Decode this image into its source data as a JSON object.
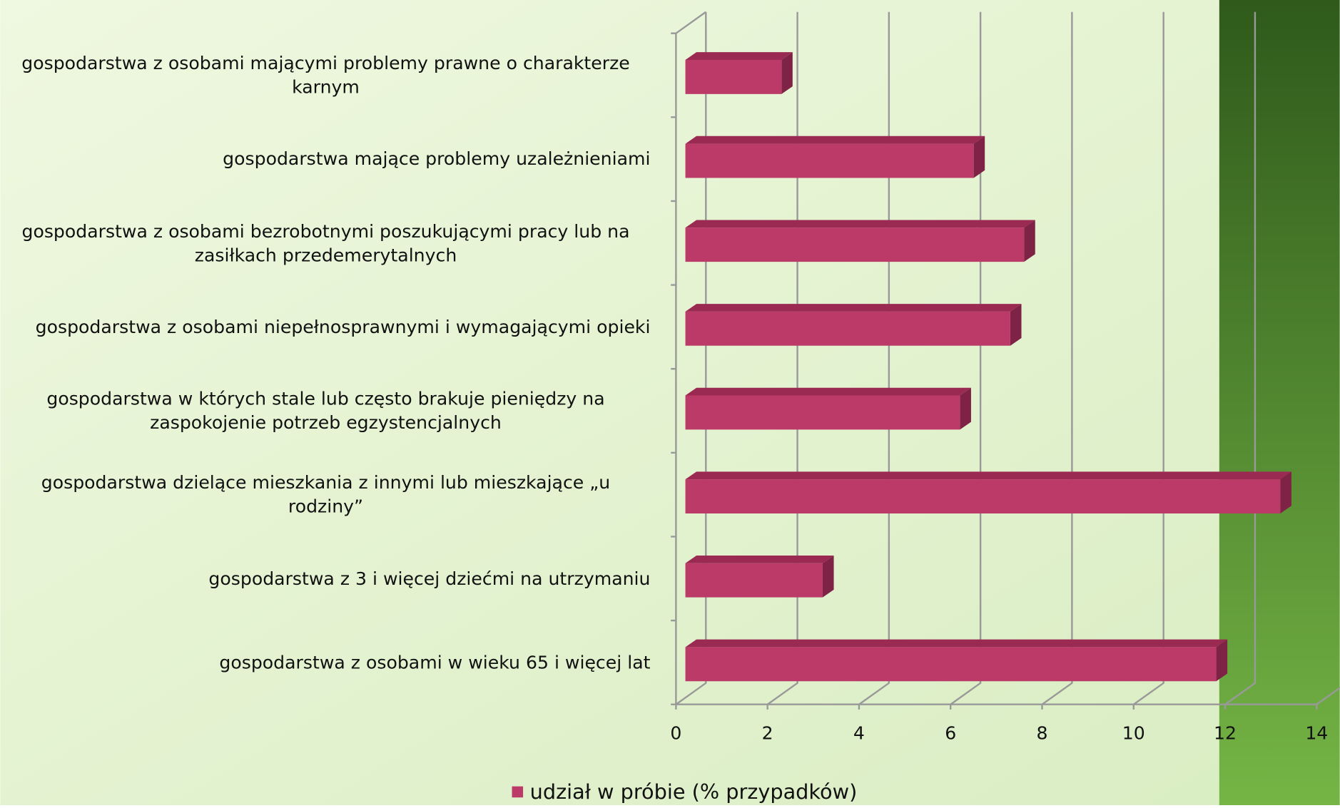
{
  "chart_data": {
    "type": "bar",
    "orientation": "horizontal",
    "categories": [
      "gospodarstwa z osobami mającymi problemy prawne o charakterze karnym",
      "gospodarstwa mające problemy uzależnieniami",
      "gospodarstwa z osobami bezrobotnymi poszukującymi pracy lub na zasiłkach przedemerytalnych",
      "gospodarstwa z osobami niepełnosprawnymi i wymagającymi opieki",
      "gospodarstwa w których stale lub często brakuje pieniędzy na zaspokojenie potrzeb egzystencjalnych",
      "gospodarstwa dzielące mieszkania z innymi lub mieszkające „u rodziny”",
      "gospodarstwa z 3 i więcej dziećmi na utrzymaniu",
      "gospodarstwa z osobami w wieku 65 i więcej lat"
    ],
    "series": [
      {
        "name": "udział w próbie  (% przypadków)",
        "color": "#bc3a68",
        "values": [
          2.1,
          6.3,
          7.4,
          7.1,
          6.0,
          13.0,
          3.0,
          11.6
        ]
      }
    ],
    "xlim": [
      0,
      14
    ],
    "xticks": [
      0,
      2,
      4,
      6,
      8,
      10,
      12,
      14
    ],
    "grid": true,
    "legend": "bottom"
  }
}
